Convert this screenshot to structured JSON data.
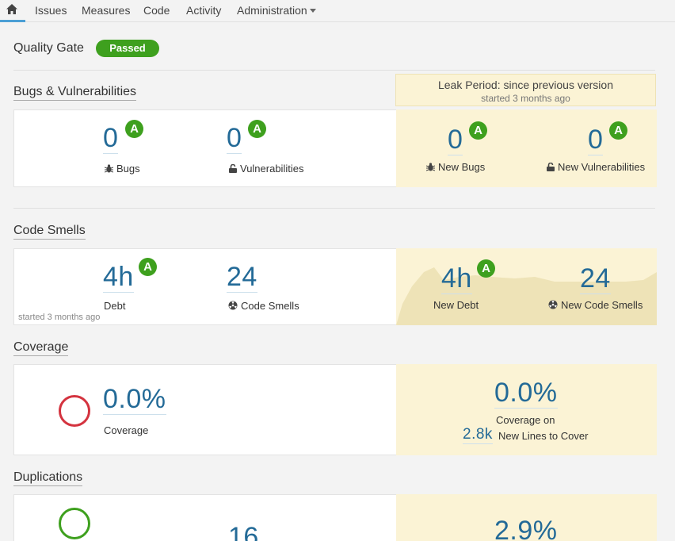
{
  "nav": {
    "items": [
      "Issues",
      "Measures",
      "Code",
      "Activity",
      "Administration"
    ]
  },
  "quality_gate": {
    "title": "Quality Gate",
    "status": "Passed"
  },
  "leak_period": {
    "title": "Leak Period: since previous version",
    "started": "started 3 months ago"
  },
  "bugs": {
    "title": "Bugs & Vulnerabilities",
    "bugs_value": "0",
    "bugs_grade": "A",
    "bugs_label": "Bugs",
    "vuln_value": "0",
    "vuln_grade": "A",
    "vuln_label": "Vulnerabilities",
    "new_bugs_value": "0",
    "new_bugs_grade": "A",
    "new_bugs_label": "New Bugs",
    "new_vuln_value": "0",
    "new_vuln_grade": "A",
    "new_vuln_label": "New Vulnerabilities"
  },
  "smells": {
    "title": "Code Smells",
    "debt_value": "4h",
    "debt_grade": "A",
    "debt_label": "Debt",
    "smells_value": "24",
    "smells_label": "Code Smells",
    "started": "started 3 months ago",
    "new_debt_value": "4h",
    "new_debt_grade": "A",
    "new_debt_label": "New Debt",
    "new_smells_value": "24",
    "new_smells_label": "New Code Smells"
  },
  "coverage": {
    "title": "Coverage",
    "value": "0.0%",
    "label": "Coverage",
    "new_value": "0.0%",
    "new_label": "Coverage on",
    "lines_value": "2.8k",
    "lines_label": "New Lines to Cover"
  },
  "duplications": {
    "title": "Duplications",
    "blocks_value": "16",
    "new_value": "2.9%"
  },
  "colors": {
    "accent": "#236a97",
    "grade_a": "#3ea01e",
    "leak_bg": "#fbf3d5",
    "coverage_ring": "#d4333f",
    "dup_ring": "#3ea01e"
  }
}
